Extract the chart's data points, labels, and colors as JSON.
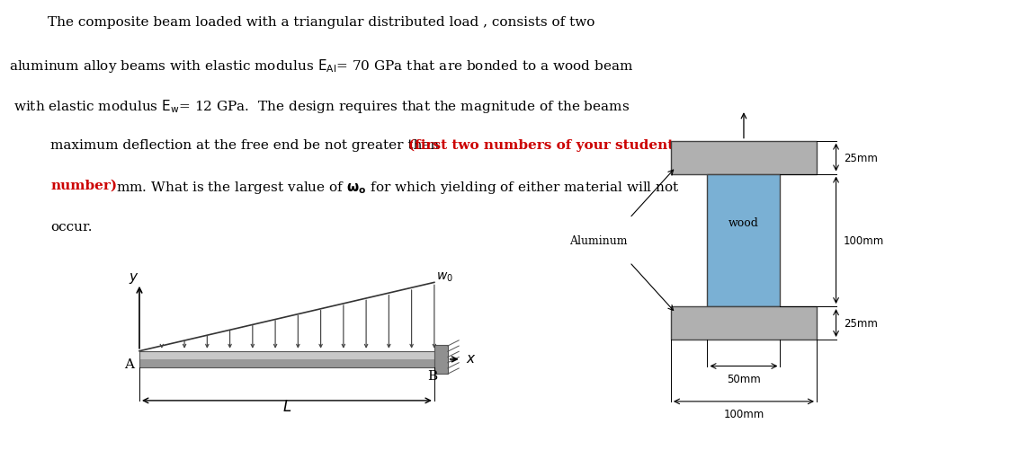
{
  "fig_width": 10.8,
  "fig_height": 4.92,
  "bg_color": "#f0f0f0",
  "text_color": "#000000",
  "red_color": "#cc0000",
  "text_fontsize": 11.0,
  "lines": [
    "The composite beam loaded with a triangular distributed load , consists of two",
    "aluminum alloy beams with elastic modulus EAl= 70 GPa that are bonded to a wood beam",
    "with elastic modulus Ew= 12 GPa.  The design requires that the magnitude of the beams",
    "maximum deflection at the free end be not greater than (first two numbers of your student",
    "number) mm. What is the largest value of wo for which yielding of either material will not",
    "occur."
  ],
  "beam_bg": "#f0f0f0",
  "beam_color": "#b0b0b0",
  "wall_color": "#888888",
  "flange_color": "#a8a8a8",
  "web_color": "#7ab0d4",
  "cs_bg": "#d8d8d8"
}
